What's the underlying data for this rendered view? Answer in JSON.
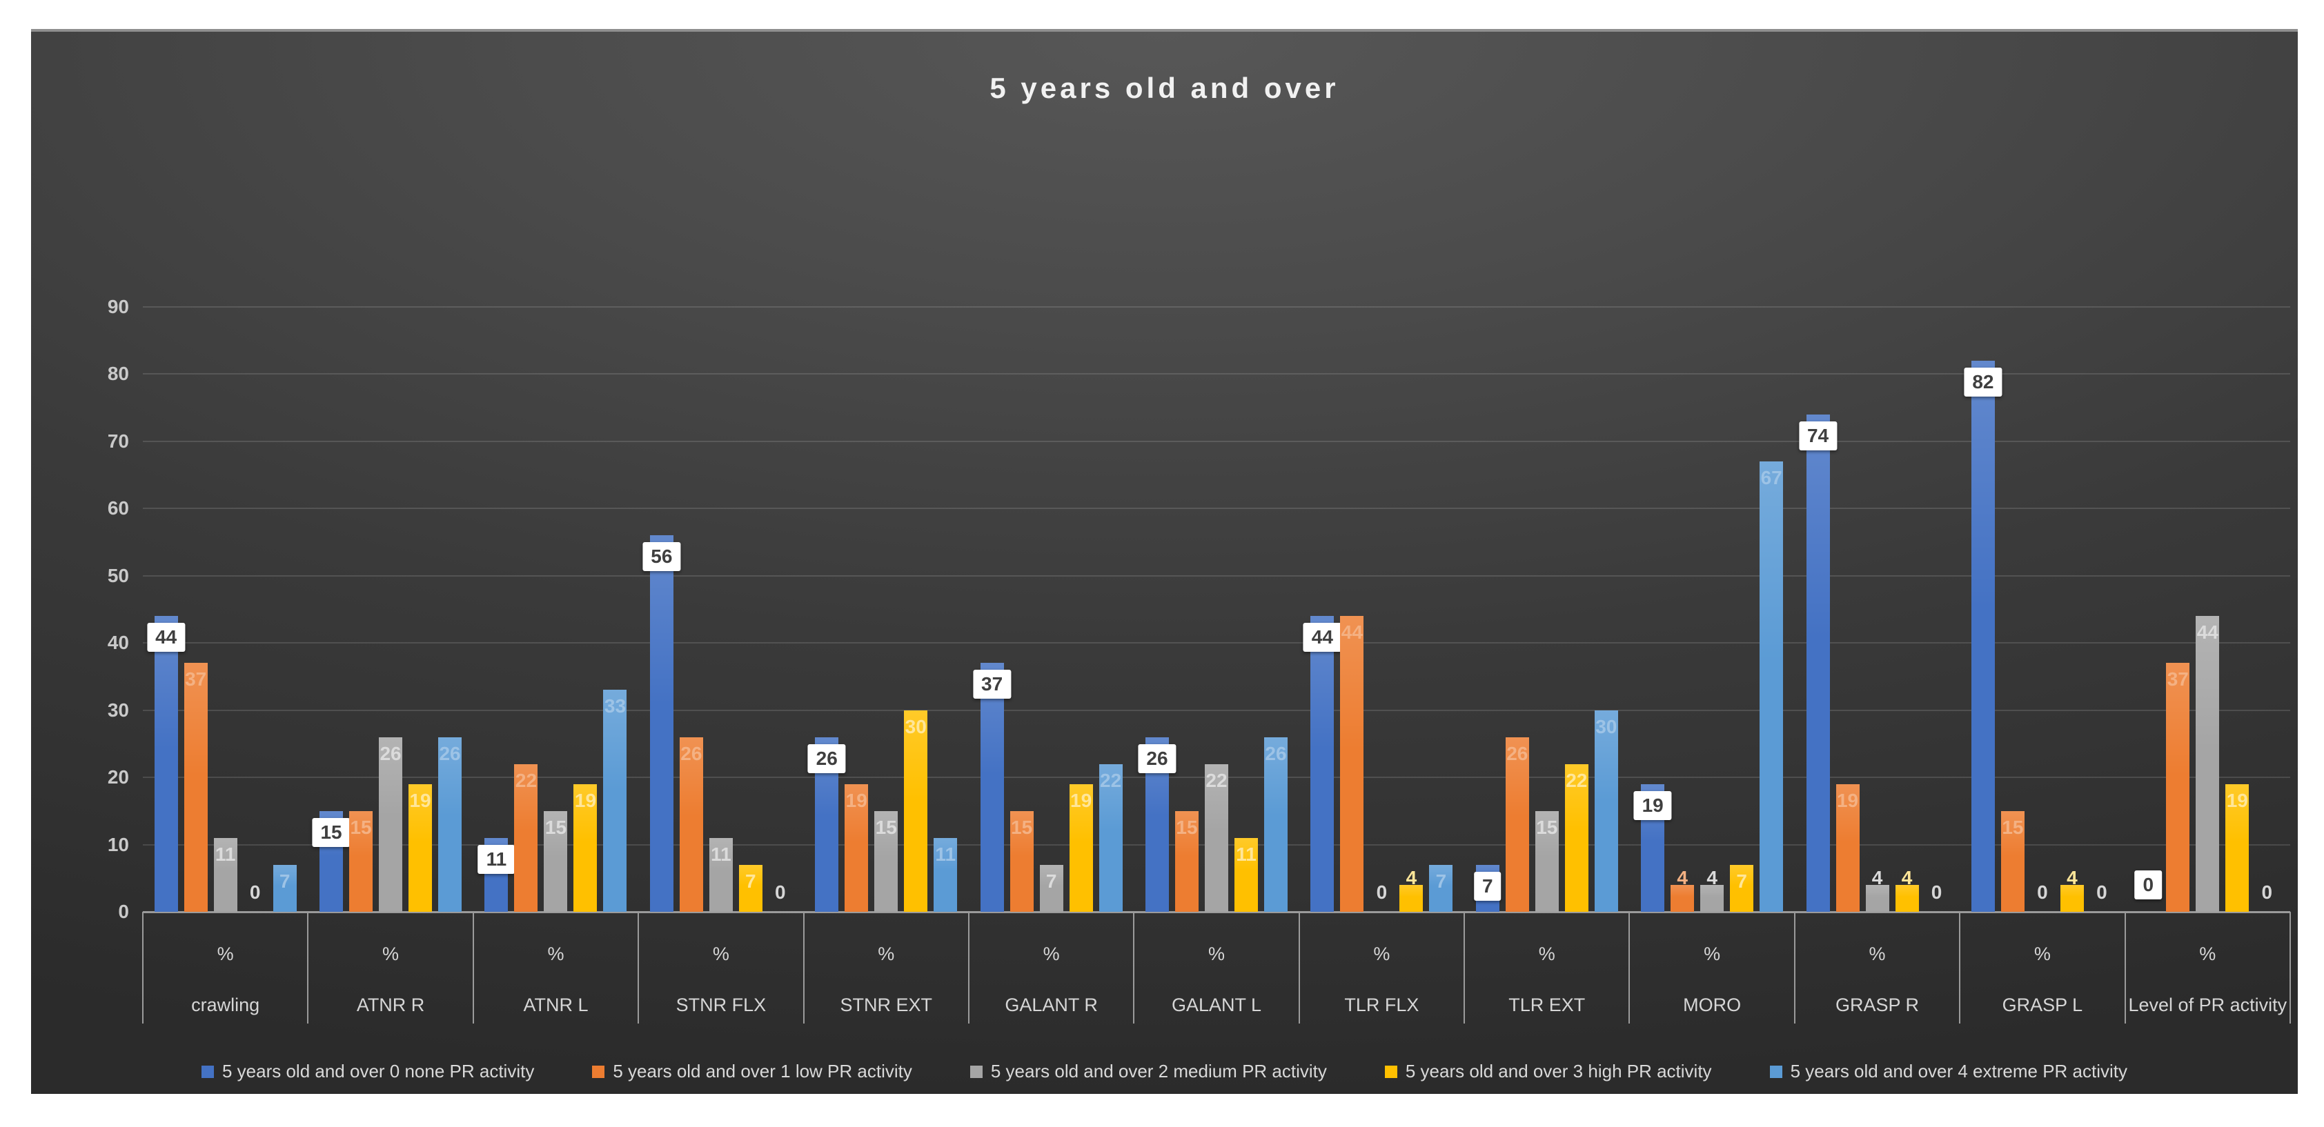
{
  "title": "5 years old and over",
  "colors": {
    "series_blue": "#4472C4",
    "series_orange": "#ED7D31",
    "series_gray": "#A5A5A5",
    "series_yellow": "#FFC000",
    "series_lightblue": "#5B9BD5",
    "panel_background": "#3a3a3a",
    "axis_text": "#c9c9c9",
    "zero_label": "#d6d6d6"
  },
  "chart_data": {
    "type": "bar",
    "title": "5 years old and over",
    "categories": [
      "crawling",
      "ATNR R",
      "ATNR L",
      "STNR FLX",
      "STNR EXT",
      "GALANT R",
      "GALANT L",
      "TLR FLX",
      "TLR EXT",
      "MORO",
      "GRASP R",
      "GRASP L",
      "Level of PR activity"
    ],
    "category_unit_label": "%",
    "series": [
      {
        "name": "5 years old and over 0 none PR activity",
        "color": "#4472C4",
        "label_color": "#3f3f3f",
        "boxed_labels": true,
        "values": [
          44,
          15,
          11,
          56,
          26,
          37,
          26,
          44,
          7,
          19,
          74,
          82,
          0
        ]
      },
      {
        "name": "5 years old and over 1 low PR activity",
        "color": "#ED7D31",
        "label_color": "#F4B183",
        "boxed_labels": false,
        "values": [
          37,
          15,
          22,
          26,
          19,
          15,
          15,
          44,
          26,
          4,
          19,
          15,
          37
        ]
      },
      {
        "name": "5 years old and over 2 medium PR activity",
        "color": "#A5A5A5",
        "label_color": "#DBDBDB",
        "boxed_labels": false,
        "values": [
          11,
          26,
          15,
          11,
          15,
          7,
          22,
          0,
          15,
          4,
          4,
          0,
          44
        ]
      },
      {
        "name": "5 years old and over 3 high PR activity",
        "color": "#FFC000",
        "label_color": "#FFE699",
        "boxed_labels": false,
        "values": [
          0,
          19,
          19,
          7,
          30,
          19,
          11,
          4,
          22,
          7,
          4,
          4,
          19
        ]
      },
      {
        "name": "5 years old and over 4 extreme PR activity",
        "color": "#5B9BD5",
        "label_color": "#9DC3E6",
        "boxed_labels": false,
        "values": [
          7,
          26,
          33,
          0,
          11,
          22,
          26,
          7,
          30,
          67,
          0,
          0,
          0
        ]
      }
    ],
    "y_ticks": [
      0,
      10,
      20,
      30,
      40,
      50,
      60,
      70,
      80,
      90
    ],
    "ylim": [
      0,
      90
    ],
    "grid": true,
    "legend_position": "bottom"
  }
}
